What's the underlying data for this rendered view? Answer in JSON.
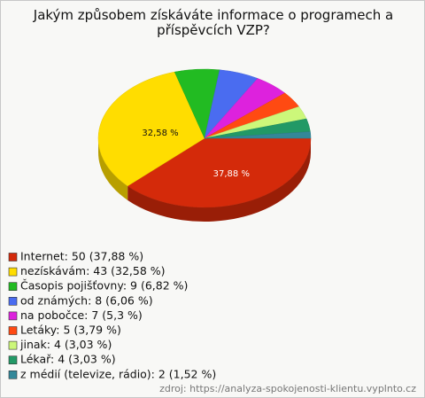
{
  "chart_data": {
    "type": "pie",
    "title": "Jakým způsobem získáváte informace o programech a příspěvcích VZP?",
    "categories": [
      "Internet: 50 (37,88 %)",
      "nezískávám: 43 (32,58 %)",
      "Časopis pojišťovny: 9 (6,82 %)",
      "od známých: 8 (6,06 %)",
      "na pobočce: 7 (5,3 %)",
      "Letáky: 5 (3,79 %)",
      "jinak: 4 (3,03 %)",
      "Lékař: 4 (3,03 %)",
      "z médií (televize, rádio): 2 (1,52 %)"
    ],
    "values": [
      50,
      43,
      9,
      8,
      7,
      5,
      4,
      4,
      2
    ],
    "value_labels": [
      "37,88 %",
      "32,58 %",
      null,
      null,
      null,
      null,
      null,
      null,
      null
    ],
    "colors": [
      "#d42a0a",
      "#ffdd00",
      "#22bb22",
      "#4a6cf0",
      "#dd22dd",
      "#ff4a12",
      "#ccf77a",
      "#229966",
      "#338899"
    ],
    "source": "zdroj: https://analyza-spokojenosti-klientu.vyplnto.cz"
  }
}
